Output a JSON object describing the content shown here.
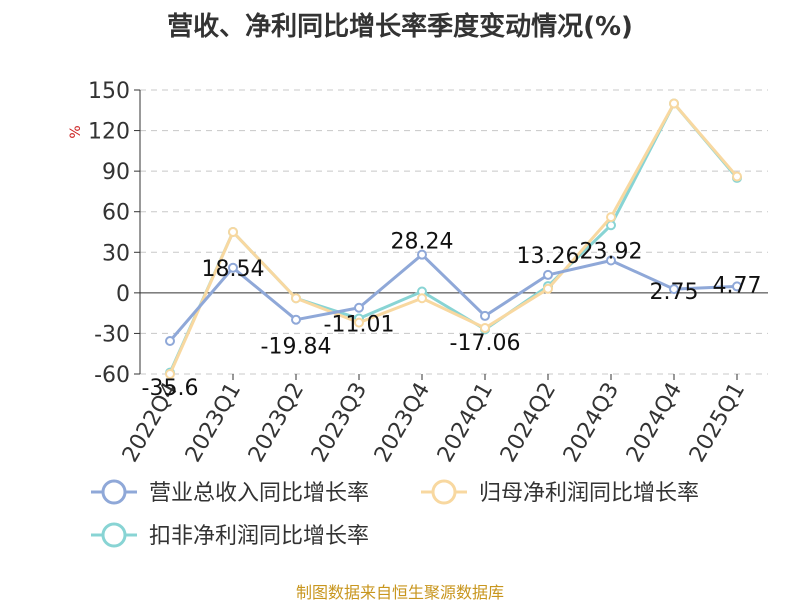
{
  "chart_data": {
    "type": "line",
    "title": "营收、净利同比增长率季度变动情况(%)",
    "ylabel": "%",
    "xlabel": "",
    "ylim": [
      -60,
      150
    ],
    "yticks": [
      150,
      120,
      90,
      60,
      30,
      0,
      -30,
      -60
    ],
    "grid": true,
    "legend_position": "bottom",
    "categories": [
      "2022Q4",
      "2023Q1",
      "2023Q2",
      "2023Q3",
      "2023Q4",
      "2024Q1",
      "2024Q2",
      "2024Q3",
      "2024Q4",
      "2025Q1"
    ],
    "series": [
      {
        "name": "营业总收入同比增长率",
        "color": "#8fa8d8",
        "values": [
          -35.6,
          18.54,
          -19.84,
          -11.01,
          28.24,
          -17.06,
          13.26,
          23.92,
          2.75,
          4.77
        ],
        "labels": [
          "-35.6",
          "18.54",
          "-19.84",
          "-11.01",
          "28.24",
          "-17.06",
          "13.26",
          "23.92",
          "2.75",
          "4.77"
        ]
      },
      {
        "name": "归母净利润同比增长率",
        "color": "#f8d8a0",
        "values": [
          -60,
          45,
          -4,
          -22,
          -4,
          -26,
          3,
          56,
          140,
          86
        ]
      },
      {
        "name": "扣非净利润同比增长率",
        "color": "#88d4d4",
        "values": [
          -59,
          45,
          -4,
          -19,
          1,
          -27,
          5,
          50,
          140,
          85
        ]
      }
    ]
  },
  "source": "制图数据来自恒生聚源数据库"
}
